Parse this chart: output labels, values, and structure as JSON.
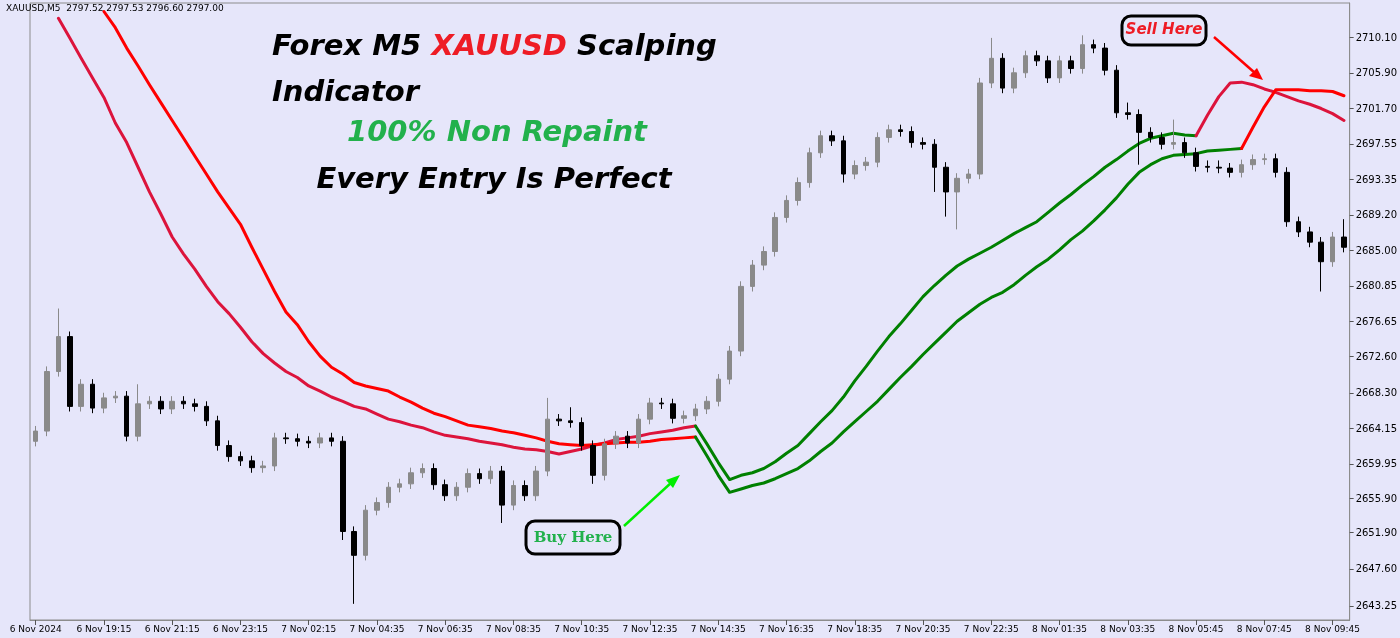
{
  "chart_data": {
    "type": "candlestick",
    "title": "Forex M5 XAUUSD Scalping Indicator",
    "subtitle": "100% Non Repaint",
    "annotations": [
      "Every Entry Is Perfect",
      "Buy Here",
      "Sell Here",
      "XAUUSD,M5  2797.52 2797.53 2796.60 2797.00"
    ],
    "categories": [
      "6 Nov 2024",
      null,
      null,
      null,
      null,
      null,
      "6 Nov 19:15",
      null,
      null,
      null,
      null,
      null,
      "6 Nov 21:15",
      null,
      null,
      null,
      null,
      null,
      "6 Nov 23:15",
      null,
      null,
      null,
      null,
      null,
      "7 Nov 02:15",
      null,
      null,
      null,
      null,
      null,
      "7 Nov 04:35",
      null,
      null,
      null,
      null,
      null,
      "7 Nov 06:35",
      null,
      null,
      null,
      null,
      null,
      "7 Nov 08:35",
      null,
      null,
      null,
      null,
      null,
      "7 Nov 10:35",
      null,
      null,
      null,
      null,
      null,
      "7 Nov 12:35",
      null,
      null,
      null,
      null,
      null,
      "7 Nov 14:35",
      null,
      null,
      null,
      null,
      null,
      "7 Nov 16:35",
      null,
      null,
      null,
      null,
      null,
      "7 Nov 18:35",
      null,
      null,
      null,
      null,
      null,
      "7 Nov 20:35",
      null,
      null,
      null,
      null,
      null,
      "7 Nov 22:35",
      null,
      null,
      null,
      null,
      null,
      "8 Nov 01:35",
      null,
      null,
      null,
      null,
      null,
      "8 Nov 03:35",
      null,
      null,
      null,
      null,
      null,
      "8 Nov 05:45",
      null,
      null,
      null,
      null,
      null,
      "8 Nov 07:45",
      null,
      null,
      null,
      null,
      null,
      "8 Nov 09:45",
      null
    ],
    "ohlc": [
      [
        2662.6,
        2664.4,
        2662.0,
        2663.8
      ],
      [
        2663.8,
        2671.4,
        2663.2,
        2670.8
      ],
      [
        2670.8,
        2678.2,
        2670.2,
        2674.9
      ],
      [
        2674.9,
        2675.5,
        2666.1,
        2666.7
      ],
      [
        2666.7,
        2669.9,
        2666.1,
        2669.3
      ],
      [
        2669.3,
        2669.9,
        2665.9,
        2666.5
      ],
      [
        2666.5,
        2668.3,
        2665.9,
        2667.7
      ],
      [
        2667.7,
        2668.5,
        2667.1,
        2667.9
      ],
      [
        2667.9,
        2668.5,
        2662.6,
        2663.2
      ],
      [
        2663.2,
        2669.3,
        2662.6,
        2667.0
      ],
      [
        2667.0,
        2667.9,
        2666.4,
        2667.3
      ],
      [
        2667.3,
        2667.9,
        2665.8,
        2666.4
      ],
      [
        2666.4,
        2667.9,
        2665.8,
        2667.3
      ],
      [
        2667.3,
        2667.9,
        2666.4,
        2667.0
      ],
      [
        2667.0,
        2667.6,
        2666.1,
        2666.7
      ],
      [
        2666.7,
        2667.3,
        2664.4,
        2665.0
      ],
      [
        2665.0,
        2665.6,
        2661.5,
        2662.1
      ],
      [
        2662.1,
        2662.7,
        2660.2,
        2660.8
      ],
      [
        2660.8,
        2661.4,
        2659.7,
        2660.3
      ],
      [
        2660.3,
        2660.9,
        2658.9,
        2659.5
      ],
      [
        2659.5,
        2660.3,
        2658.9,
        2659.7
      ],
      [
        2659.7,
        2663.6,
        2659.1,
        2663.0
      ],
      [
        2663.0,
        2663.6,
        2662.3,
        2662.9
      ],
      [
        2662.9,
        2663.5,
        2662.0,
        2662.6
      ],
      [
        2662.6,
        2663.2,
        2661.8,
        2662.4
      ],
      [
        2662.4,
        2663.6,
        2661.8,
        2663.0
      ],
      [
        2663.0,
        2663.6,
        2662.0,
        2662.6
      ],
      [
        2662.6,
        2663.2,
        2651.0,
        2652.0
      ],
      [
        2652.0,
        2652.6,
        2643.5,
        2649.2
      ],
      [
        2649.2,
        2655.1,
        2648.6,
        2654.5
      ],
      [
        2654.5,
        2656.0,
        2653.9,
        2655.4
      ],
      [
        2655.4,
        2657.8,
        2654.8,
        2657.2
      ],
      [
        2657.2,
        2658.2,
        2656.6,
        2657.6
      ],
      [
        2657.6,
        2659.5,
        2657.0,
        2658.9
      ],
      [
        2658.9,
        2660.0,
        2658.3,
        2659.4
      ],
      [
        2659.4,
        2660.0,
        2656.9,
        2657.5
      ],
      [
        2657.5,
        2658.1,
        2655.6,
        2656.2
      ],
      [
        2656.2,
        2657.8,
        2655.6,
        2657.2
      ],
      [
        2657.2,
        2659.4,
        2656.6,
        2658.8
      ],
      [
        2658.8,
        2659.4,
        2657.6,
        2658.2
      ],
      [
        2658.2,
        2659.7,
        2657.6,
        2659.1
      ],
      [
        2659.1,
        2659.7,
        2653.0,
        2655.1
      ],
      [
        2655.1,
        2658.0,
        2654.5,
        2657.4
      ],
      [
        2657.4,
        2658.0,
        2655.6,
        2656.2
      ],
      [
        2656.2,
        2659.7,
        2655.6,
        2659.1
      ],
      [
        2659.1,
        2667.7,
        2658.5,
        2665.2
      ],
      [
        2665.2,
        2665.8,
        2664.4,
        2665.0
      ],
      [
        2665.0,
        2666.6,
        2664.2,
        2664.8
      ],
      [
        2664.8,
        2665.4,
        2661.5,
        2662.1
      ],
      [
        2662.1,
        2662.7,
        2657.6,
        2658.6
      ],
      [
        2658.6,
        2662.9,
        2658.0,
        2662.3
      ],
      [
        2662.3,
        2663.8,
        2661.7,
        2663.2
      ],
      [
        2663.2,
        2663.8,
        2661.8,
        2662.4
      ],
      [
        2662.4,
        2665.8,
        2661.8,
        2665.2
      ],
      [
        2665.2,
        2667.7,
        2664.6,
        2667.1
      ],
      [
        2667.1,
        2667.7,
        2666.4,
        2667.0
      ],
      [
        2667.0,
        2667.6,
        2664.7,
        2665.3
      ],
      [
        2665.3,
        2666.2,
        2664.7,
        2665.6
      ],
      [
        2665.6,
        2667.0,
        2665.0,
        2666.4
      ],
      [
        2666.4,
        2667.9,
        2665.8,
        2667.3
      ],
      [
        2667.3,
        2670.5,
        2666.7,
        2669.9
      ],
      [
        2669.9,
        2673.8,
        2669.3,
        2673.2
      ],
      [
        2673.2,
        2681.4,
        2672.6,
        2680.8
      ],
      [
        2680.8,
        2683.9,
        2680.2,
        2683.3
      ],
      [
        2683.3,
        2685.5,
        2682.7,
        2684.9
      ],
      [
        2684.9,
        2689.5,
        2684.3,
        2688.9
      ],
      [
        2688.9,
        2691.5,
        2688.3,
        2690.9
      ],
      [
        2690.9,
        2693.6,
        2690.3,
        2693.0
      ],
      [
        2693.0,
        2697.1,
        2692.4,
        2696.5
      ],
      [
        2696.5,
        2699.1,
        2695.9,
        2698.5
      ],
      [
        2698.5,
        2699.1,
        2697.3,
        2697.9
      ],
      [
        2697.9,
        2698.5,
        2693.0,
        2694.0
      ],
      [
        2694.0,
        2695.6,
        2693.4,
        2695.0
      ],
      [
        2695.0,
        2696.0,
        2694.4,
        2695.4
      ],
      [
        2695.4,
        2698.9,
        2694.8,
        2698.3
      ],
      [
        2698.3,
        2699.8,
        2697.7,
        2699.2
      ],
      [
        2699.2,
        2699.8,
        2698.4,
        2699.0
      ],
      [
        2699.0,
        2699.6,
        2697.1,
        2697.7
      ],
      [
        2697.7,
        2698.3,
        2696.9,
        2697.5
      ],
      [
        2697.5,
        2698.1,
        2691.9,
        2694.8
      ],
      [
        2694.8,
        2695.4,
        2689.0,
        2691.9
      ],
      [
        2691.9,
        2694.1,
        2687.5,
        2693.5
      ],
      [
        2693.5,
        2694.6,
        2692.9,
        2694.0
      ],
      [
        2694.0,
        2705.3,
        2693.4,
        2704.7
      ],
      [
        2704.7,
        2710.0,
        2704.1,
        2707.6
      ],
      [
        2707.6,
        2708.2,
        2703.5,
        2704.1
      ],
      [
        2704.1,
        2706.5,
        2703.5,
        2705.9
      ],
      [
        2705.9,
        2708.5,
        2705.3,
        2707.9
      ],
      [
        2707.9,
        2708.5,
        2706.7,
        2707.3
      ],
      [
        2707.3,
        2707.9,
        2704.7,
        2705.3
      ],
      [
        2705.3,
        2707.9,
        2704.7,
        2707.3
      ],
      [
        2707.3,
        2707.9,
        2705.8,
        2706.4
      ],
      [
        2706.4,
        2710.3,
        2705.8,
        2709.2
      ],
      [
        2709.2,
        2709.8,
        2708.2,
        2708.8
      ],
      [
        2708.8,
        2709.4,
        2705.6,
        2706.2
      ],
      [
        2706.2,
        2706.8,
        2700.6,
        2701.2
      ],
      [
        2701.2,
        2702.4,
        2700.4,
        2701.0
      ],
      [
        2701.0,
        2701.6,
        2695.1,
        2698.9
      ],
      [
        2698.9,
        2699.5,
        2697.7,
        2698.3
      ],
      [
        2698.3,
        2698.9,
        2696.9,
        2697.5
      ],
      [
        2697.5,
        2700.4,
        2696.9,
        2697.7
      ],
      [
        2697.7,
        2698.3,
        2695.9,
        2696.5
      ],
      [
        2696.5,
        2697.1,
        2694.3,
        2694.9
      ],
      [
        2694.9,
        2695.6,
        2694.2,
        2694.8
      ],
      [
        2694.8,
        2695.6,
        2694.1,
        2694.7
      ],
      [
        2694.7,
        2695.3,
        2693.6,
        2694.2
      ],
      [
        2694.2,
        2695.7,
        2693.6,
        2695.1
      ],
      [
        2695.1,
        2696.3,
        2694.5,
        2695.7
      ],
      [
        2695.7,
        2696.4,
        2695.1,
        2695.8
      ],
      [
        2695.8,
        2696.4,
        2693.6,
        2694.2
      ],
      [
        2694.2,
        2694.8,
        2687.8,
        2688.4
      ],
      [
        2688.4,
        2689.0,
        2686.6,
        2687.2
      ],
      [
        2687.2,
        2687.8,
        2685.4,
        2686.0
      ],
      [
        2686.0,
        2686.6,
        2680.2,
        2683.7
      ],
      [
        2683.7,
        2687.2,
        2683.1,
        2686.6
      ],
      [
        2686.6,
        2688.7,
        2684.8,
        2685.4
      ]
    ],
    "series": [
      {
        "type": "line",
        "color": "#dc143c",
        "values": [
          null,
          null,
          2712.3,
          2710.0,
          2707.6,
          2705.3,
          2703.0,
          2700.0,
          2697.7,
          2694.8,
          2691.9,
          2689.3,
          2686.6,
          2684.6,
          2682.8,
          2680.8,
          2679.0,
          2677.6,
          2676.0,
          2674.3,
          2672.9,
          2671.8,
          2670.8,
          2670.1,
          2669.1,
          2668.5,
          2667.8,
          2667.3,
          2666.7,
          2666.4,
          2665.8,
          2665.2,
          2664.9,
          2664.5,
          2664.2,
          2663.7,
          2663.3,
          2663.1,
          2662.9,
          2662.6,
          2662.4,
          2662.2,
          2661.9,
          2661.7,
          2661.6,
          2661.4,
          2661.1,
          2661.4,
          2661.7,
          2662.1,
          2662.4,
          2662.8,
          2663.0,
          2663.2,
          2663.5,
          2663.7,
          2663.9,
          2664.2,
          2664.4,
          null,
          null,
          null,
          null,
          null,
          null,
          null,
          null,
          null,
          null,
          null,
          null,
          null,
          null,
          null,
          null,
          null,
          null,
          null,
          null,
          null,
          null,
          null,
          null,
          null,
          null,
          null,
          null,
          null,
          null,
          null,
          null,
          null,
          null,
          null,
          null,
          null,
          null,
          null,
          null,
          null,
          null,
          null,
          null,
          null,
          null,
          null,
          null,
          null,
          null,
          null,
          null,
          null,
          null,
          null,
          null,
          null
        ]
      },
      {
        "type": "line",
        "color": "#ff0000",
        "values": [
          null,
          null,
          null,
          null,
          null,
          null,
          2713.1,
          2711.2,
          2708.8,
          2706.7,
          2704.5,
          2702.4,
          2700.3,
          2698.2,
          2696.1,
          2694.0,
          2691.9,
          2690.0,
          2688.1,
          2685.4,
          2682.8,
          2680.2,
          2677.8,
          2676.3,
          2674.3,
          2672.6,
          2671.3,
          2670.5,
          2669.5,
          2669.1,
          2668.8,
          2668.5,
          2667.8,
          2667.2,
          2666.5,
          2665.9,
          2665.5,
          2665.0,
          2664.5,
          2664.3,
          2664.1,
          2663.8,
          2663.6,
          2663.3,
          2663.0,
          2662.6,
          2662.3,
          2662.2,
          2662.1,
          2662.2,
          2662.3,
          2662.4,
          2662.5,
          2662.5,
          2662.6,
          2662.8,
          2662.9,
          2663.0,
          2663.1,
          null,
          null,
          null,
          null,
          null,
          null,
          null,
          null,
          null,
          null,
          null,
          null,
          null,
          null,
          null,
          null,
          null,
          null,
          null,
          null,
          null,
          null,
          null,
          null,
          null,
          null,
          null,
          null,
          null,
          null,
          null,
          null,
          null,
          null,
          null,
          null,
          null,
          null,
          null,
          null,
          null,
          null,
          null,
          null,
          null,
          null,
          null,
          null,
          null,
          null,
          null,
          null,
          null,
          null,
          null,
          null,
          null
        ]
      },
      {
        "type": "line",
        "color": "#008000",
        "values": [
          null,
          null,
          null,
          null,
          null,
          null,
          null,
          null,
          null,
          null,
          null,
          null,
          null,
          null,
          null,
          null,
          null,
          null,
          null,
          null,
          null,
          null,
          null,
          null,
          null,
          null,
          null,
          null,
          null,
          null,
          null,
          null,
          null,
          null,
          null,
          null,
          null,
          null,
          null,
          null,
          null,
          null,
          null,
          null,
          null,
          null,
          null,
          null,
          null,
          null,
          null,
          null,
          null,
          null,
          null,
          null,
          null,
          null,
          2664.4,
          2662.3,
          2660.1,
          2658.1,
          2658.6,
          2658.9,
          2659.4,
          2660.2,
          2661.2,
          2662.1,
          2663.5,
          2664.9,
          2666.2,
          2667.8,
          2669.7,
          2671.4,
          2673.2,
          2674.9,
          2676.4,
          2678.0,
          2679.6,
          2680.9,
          2682.1,
          2683.2,
          2684.0,
          2684.7,
          2685.4,
          2686.2,
          2687.0,
          2687.7,
          2688.4,
          2689.5,
          2690.6,
          2691.6,
          2692.7,
          2693.7,
          2694.8,
          2695.7,
          2696.7,
          2697.6,
          2698.2,
          2698.5,
          2698.8,
          2698.6,
          2698.5,
          null,
          null,
          null,
          null,
          null,
          null,
          null,
          null,
          null,
          null,
          null,
          null,
          null
        ]
      },
      {
        "type": "line",
        "color": "#008000",
        "values": [
          null,
          null,
          null,
          null,
          null,
          null,
          null,
          null,
          null,
          null,
          null,
          null,
          null,
          null,
          null,
          null,
          null,
          null,
          null,
          null,
          null,
          null,
          null,
          null,
          null,
          null,
          null,
          null,
          null,
          null,
          null,
          null,
          null,
          null,
          null,
          null,
          null,
          null,
          null,
          null,
          null,
          null,
          null,
          null,
          null,
          null,
          null,
          null,
          null,
          null,
          null,
          null,
          null,
          null,
          null,
          null,
          null,
          null,
          2663.1,
          2660.9,
          2658.6,
          2656.6,
          2657.0,
          2657.4,
          2657.7,
          2658.2,
          2658.8,
          2659.4,
          2660.3,
          2661.4,
          2662.4,
          2663.7,
          2664.9,
          2666.1,
          2667.3,
          2668.7,
          2670.1,
          2671.4,
          2672.8,
          2674.1,
          2675.4,
          2676.7,
          2677.7,
          2678.7,
          2679.5,
          2680.1,
          2681.0,
          2682.1,
          2683.1,
          2684.0,
          2685.1,
          2686.3,
          2687.3,
          2688.5,
          2689.8,
          2691.2,
          2692.8,
          2694.2,
          2695.1,
          2695.8,
          2696.2,
          2696.3,
          2696.4,
          2696.7,
          2696.8,
          2696.9,
          2697.0,
          null,
          null,
          null,
          null,
          null,
          null,
          null,
          null,
          null
        ]
      },
      {
        "type": "line",
        "color": "#dc143c",
        "values": [
          null,
          null,
          null,
          null,
          null,
          null,
          null,
          null,
          null,
          null,
          null,
          null,
          null,
          null,
          null,
          null,
          null,
          null,
          null,
          null,
          null,
          null,
          null,
          null,
          null,
          null,
          null,
          null,
          null,
          null,
          null,
          null,
          null,
          null,
          null,
          null,
          null,
          null,
          null,
          null,
          null,
          null,
          null,
          null,
          null,
          null,
          null,
          null,
          null,
          null,
          null,
          null,
          null,
          null,
          null,
          null,
          null,
          null,
          null,
          null,
          null,
          null,
          null,
          null,
          null,
          null,
          null,
          null,
          null,
          null,
          null,
          null,
          null,
          null,
          null,
          null,
          null,
          null,
          null,
          null,
          null,
          null,
          null,
          null,
          null,
          null,
          null,
          null,
          null,
          null,
          null,
          null,
          null,
          null,
          null,
          null,
          null,
          null,
          null,
          null,
          null,
          null,
          2698.5,
          2700.9,
          2703.1,
          2704.7,
          2704.8,
          2704.5,
          2704.0,
          2703.6,
          2703.1,
          2702.6,
          2702.2,
          2701.7,
          2701.1,
          2700.3
        ]
      },
      {
        "type": "line",
        "color": "#ff0000",
        "values": [
          null,
          null,
          null,
          null,
          null,
          null,
          null,
          null,
          null,
          null,
          null,
          null,
          null,
          null,
          null,
          null,
          null,
          null,
          null,
          null,
          null,
          null,
          null,
          null,
          null,
          null,
          null,
          null,
          null,
          null,
          null,
          null,
          null,
          null,
          null,
          null,
          null,
          null,
          null,
          null,
          null,
          null,
          null,
          null,
          null,
          null,
          null,
          null,
          null,
          null,
          null,
          null,
          null,
          null,
          null,
          null,
          null,
          null,
          null,
          null,
          null,
          null,
          null,
          null,
          null,
          null,
          null,
          null,
          null,
          null,
          null,
          null,
          null,
          null,
          null,
          null,
          null,
          null,
          null,
          null,
          null,
          null,
          null,
          null,
          null,
          null,
          null,
          null,
          null,
          null,
          null,
          null,
          null,
          null,
          null,
          null,
          null,
          null,
          null,
          null,
          null,
          null,
          null,
          null,
          null,
          null,
          2697.0,
          2699.5,
          2701.9,
          2703.9,
          2703.9,
          2703.9,
          2703.8,
          2703.8,
          2703.7,
          2703.2
        ]
      }
    ],
    "ylim": [
      2641.6,
      2714.1
    ],
    "yticks": [
      2643.25,
      {
        "value": 2647.6,
        "label": "2647.60"
      },
      {
        "value": 2651.9,
        "label": "2651.90"
      },
      {
        "value": 2655.9,
        "label": "2655.90"
      },
      2659.95,
      2664.15,
      {
        "value": 2668.3,
        "label": "2668.30"
      },
      {
        "value": 2672.6,
        "label": "2672.60"
      },
      2676.65,
      2680.85,
      {
        "value": 2685,
        "label": "2685.00"
      },
      {
        "value": 2689.2,
        "label": "2689.20"
      },
      2693.35,
      2697.55,
      {
        "value": 2701.7,
        "label": "2701.70"
      },
      {
        "value": 2705.9,
        "label": "2705.90"
      },
      {
        "value": 2710.1,
        "label": "2710.10"
      }
    ],
    "grid": false,
    "marker": "none",
    "line_style": "solid"
  }
}
